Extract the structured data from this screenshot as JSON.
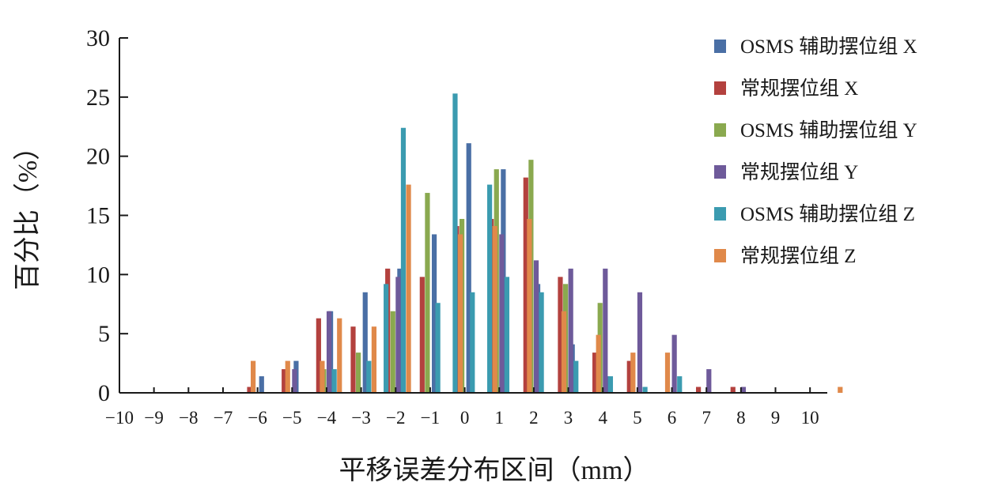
{
  "chart_data": {
    "type": "bar",
    "xlabel": "平移误差分布区间（mm）",
    "ylabel": "百分比（%）",
    "ylim": [
      0,
      30
    ],
    "yticks": [
      0,
      5,
      10,
      15,
      20,
      25,
      30
    ],
    "xlim": [
      -10,
      10.5
    ],
    "x_tick_labels": [
      "−10",
      "−9",
      "−8",
      "−7",
      "−6",
      "−5",
      "−4",
      "−3",
      "−2",
      "−1",
      "0",
      "1",
      "2",
      "3",
      "4",
      "5",
      "6",
      "7",
      "8",
      "9",
      "10"
    ],
    "categories": [
      -6.5,
      -6,
      -5.5,
      -5,
      -4.5,
      -4,
      -3.5,
      -3,
      -2.5,
      -2,
      -1.5,
      -1,
      -0.5,
      0,
      0.5,
      1,
      1.5,
      2,
      2.5,
      3,
      3.5,
      4,
      4.5,
      5,
      5.5,
      6,
      6.5,
      7,
      7.5,
      8,
      8.5,
      9,
      9.5,
      10,
      10.5
    ],
    "legend_position": "top-right",
    "grid": false,
    "series": [
      {
        "name": "OSMS 辅助摆位组 X",
        "color": "#4a6fa5",
        "values": [
          0,
          0,
          1.4,
          0,
          2.7,
          0,
          6.9,
          0,
          8.5,
          0,
          10.5,
          0,
          13.4,
          0,
          21.1,
          0,
          18.9,
          0,
          9.2,
          0,
          4.1,
          0,
          1.4,
          0,
          0,
          0,
          0,
          0,
          0,
          0,
          0,
          0,
          0,
          0,
          0
        ]
      },
      {
        "name": "常规摆位组 X",
        "color": "#b3413e",
        "values": [
          0,
          0.5,
          0,
          2.0,
          0,
          6.3,
          0,
          5.6,
          0,
          10.5,
          0,
          9.8,
          0,
          14.1,
          0,
          14.7,
          0,
          18.2,
          0,
          9.8,
          0,
          3.4,
          0,
          2.7,
          0,
          0,
          0,
          0.5,
          0,
          0.5,
          0,
          0,
          0,
          0,
          0
        ]
      },
      {
        "name": "OSMS 辅助摆位组 Y",
        "color": "#8aa94f",
        "values": [
          0,
          0,
          0,
          0,
          0,
          2.0,
          0,
          3.4,
          0,
          6.9,
          0,
          16.9,
          0,
          14.7,
          0,
          18.9,
          0,
          19.7,
          0,
          9.2,
          0,
          7.6,
          0,
          0,
          0,
          0,
          0,
          0,
          0,
          0,
          0,
          0,
          0,
          0,
          0
        ]
      },
      {
        "name": "常规摆位组 Y",
        "color": "#6e5a9a",
        "values": [
          0,
          0,
          0,
          2.0,
          0,
          6.9,
          0,
          0,
          0,
          9.8,
          0,
          0,
          0,
          0,
          0,
          13.4,
          0,
          11.2,
          0,
          10.5,
          0,
          10.5,
          0,
          8.5,
          0,
          4.9,
          0,
          2.0,
          0,
          0.5,
          0,
          0,
          0,
          0,
          0
        ]
      },
      {
        "name": "OSMS 辅助摆位组 Z",
        "color": "#3b9bb0",
        "values": [
          0,
          0,
          0,
          0,
          0,
          2.0,
          0,
          2.7,
          9.2,
          22.4,
          0,
          7.6,
          25.3,
          8.5,
          17.6,
          9.8,
          0,
          8.5,
          0,
          2.7,
          0,
          1.4,
          0,
          0.5,
          0,
          1.4,
          0,
          0,
          0,
          0,
          0,
          0,
          0,
          0,
          0
        ]
      },
      {
        "name": "常规摆位组 Z",
        "color": "#e0894a",
        "values": [
          2.7,
          0,
          2.7,
          0,
          2.7,
          6.3,
          0,
          5.6,
          0,
          17.6,
          0,
          0,
          13.4,
          0,
          14.1,
          0,
          14.7,
          0,
          6.9,
          0,
          4.9,
          0,
          3.4,
          0,
          3.4,
          0,
          0,
          0,
          0,
          0,
          0,
          0,
          0,
          0,
          0.5
        ]
      }
    ]
  }
}
